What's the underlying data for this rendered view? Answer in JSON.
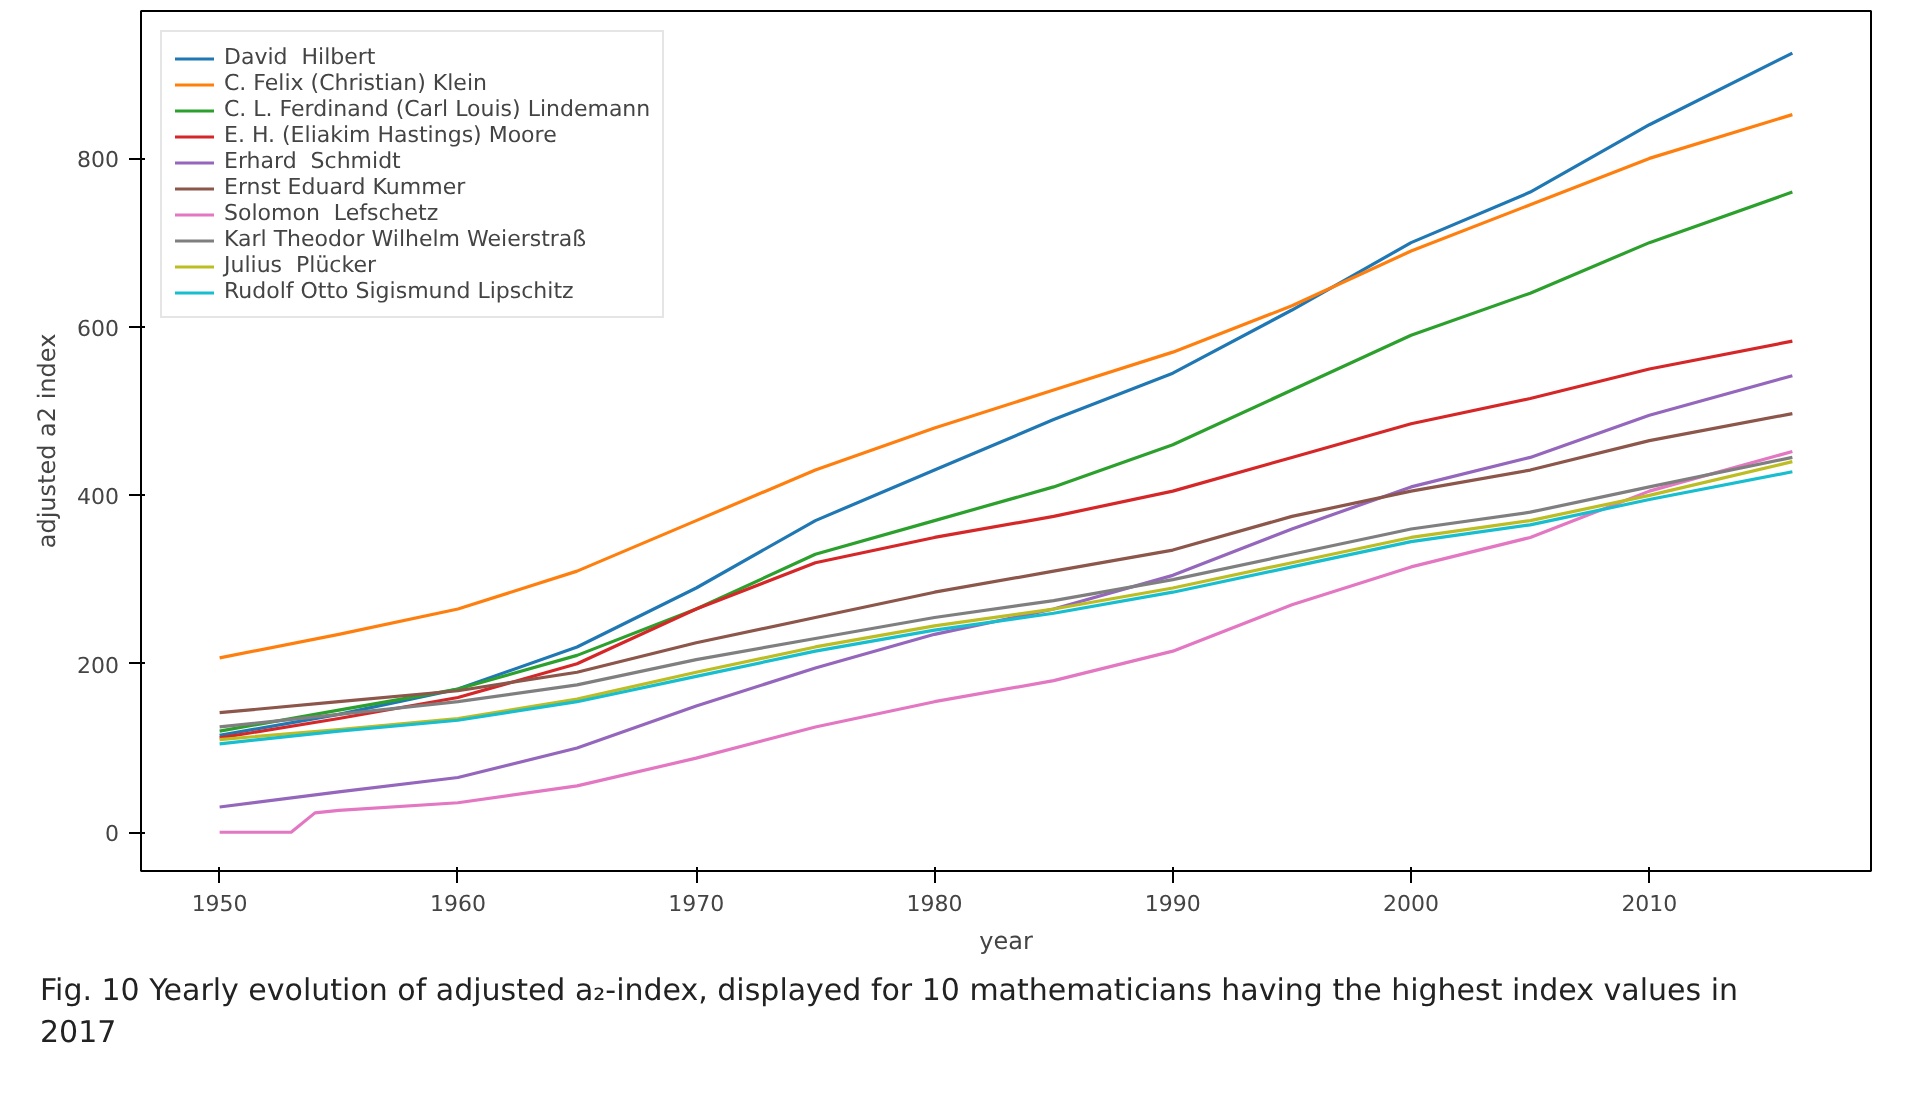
{
  "chart_data": {
    "type": "line",
    "xlabel": "year",
    "ylabel": "adjusted a2 index",
    "x": [
      1950,
      1955,
      1960,
      1965,
      1970,
      1975,
      1980,
      1985,
      1990,
      1995,
      2000,
      2005,
      2010,
      2016
    ],
    "series": [
      {
        "name": "David  Hilbert",
        "color": "#1f77b4",
        "values": [
          115,
          140,
          170,
          220,
          290,
          370,
          430,
          490,
          545,
          620,
          700,
          760,
          840,
          925
        ]
      },
      {
        "name": "C. Felix (Christian) Klein",
        "color": "#ff7f0e",
        "values": [
          207,
          235,
          265,
          310,
          370,
          430,
          480,
          525,
          570,
          625,
          690,
          745,
          800,
          852
        ]
      },
      {
        "name": "C. L. Ferdinand (Carl Louis) Lindemann",
        "color": "#2ca02c",
        "values": [
          120,
          145,
          170,
          210,
          265,
          330,
          370,
          410,
          460,
          525,
          590,
          640,
          700,
          760
        ]
      },
      {
        "name": "E. H. (Eliakim Hastings) Moore",
        "color": "#d62728",
        "values": [
          112,
          135,
          160,
          200,
          265,
          320,
          350,
          375,
          405,
          445,
          485,
          515,
          550,
          583
        ]
      },
      {
        "name": "Erhard  Schmidt",
        "color": "#9467bd",
        "values": [
          30,
          48,
          65,
          100,
          150,
          195,
          235,
          265,
          305,
          360,
          410,
          445,
          495,
          542
        ]
      },
      {
        "name": "Ernst Eduard Kummer",
        "color": "#8c564b",
        "values": [
          142,
          155,
          168,
          190,
          225,
          255,
          285,
          310,
          335,
          375,
          405,
          430,
          465,
          497
        ]
      },
      {
        "name": "Solomon  Lefschetz",
        "color": "#e377c2",
        "x": [
          1950,
          1953,
          1954,
          1955,
          1960,
          1965,
          1970,
          1975,
          1980,
          1985,
          1990,
          1995,
          2000,
          2005,
          2010,
          2016
        ],
        "values": [
          0,
          0,
          23,
          26,
          35,
          55,
          88,
          125,
          155,
          180,
          215,
          270,
          315,
          350,
          405,
          452
        ]
      },
      {
        "name": "Karl Theodor Wilhelm Weierstraß",
        "color": "#7f7f7f",
        "values": [
          125,
          140,
          155,
          175,
          205,
          230,
          255,
          275,
          300,
          330,
          360,
          380,
          410,
          445
        ]
      },
      {
        "name": "Julius  Plücker",
        "color": "#bcbd22",
        "values": [
          110,
          122,
          135,
          158,
          190,
          220,
          245,
          265,
          290,
          320,
          350,
          370,
          400,
          440
        ]
      },
      {
        "name": "Rudolf Otto Sigismund Lipschitz",
        "color": "#17becf",
        "values": [
          105,
          120,
          133,
          155,
          185,
          215,
          240,
          260,
          285,
          315,
          345,
          365,
          395,
          428
        ]
      }
    ],
    "xlim": [
      1946.7,
      2019.3
    ],
    "ylim": [
      -46,
      975
    ],
    "xticks": [
      1950,
      1960,
      1970,
      1980,
      1990,
      2000,
      2010
    ],
    "yticks": [
      0,
      200,
      400,
      600,
      800
    ],
    "grid": false,
    "legend": "top left",
    "annotations": [
      "Fig. 10 Yearly evolution of adjusted a₂-index, displayed for 10 mathematicians having the highest index values in 2017"
    ]
  }
}
